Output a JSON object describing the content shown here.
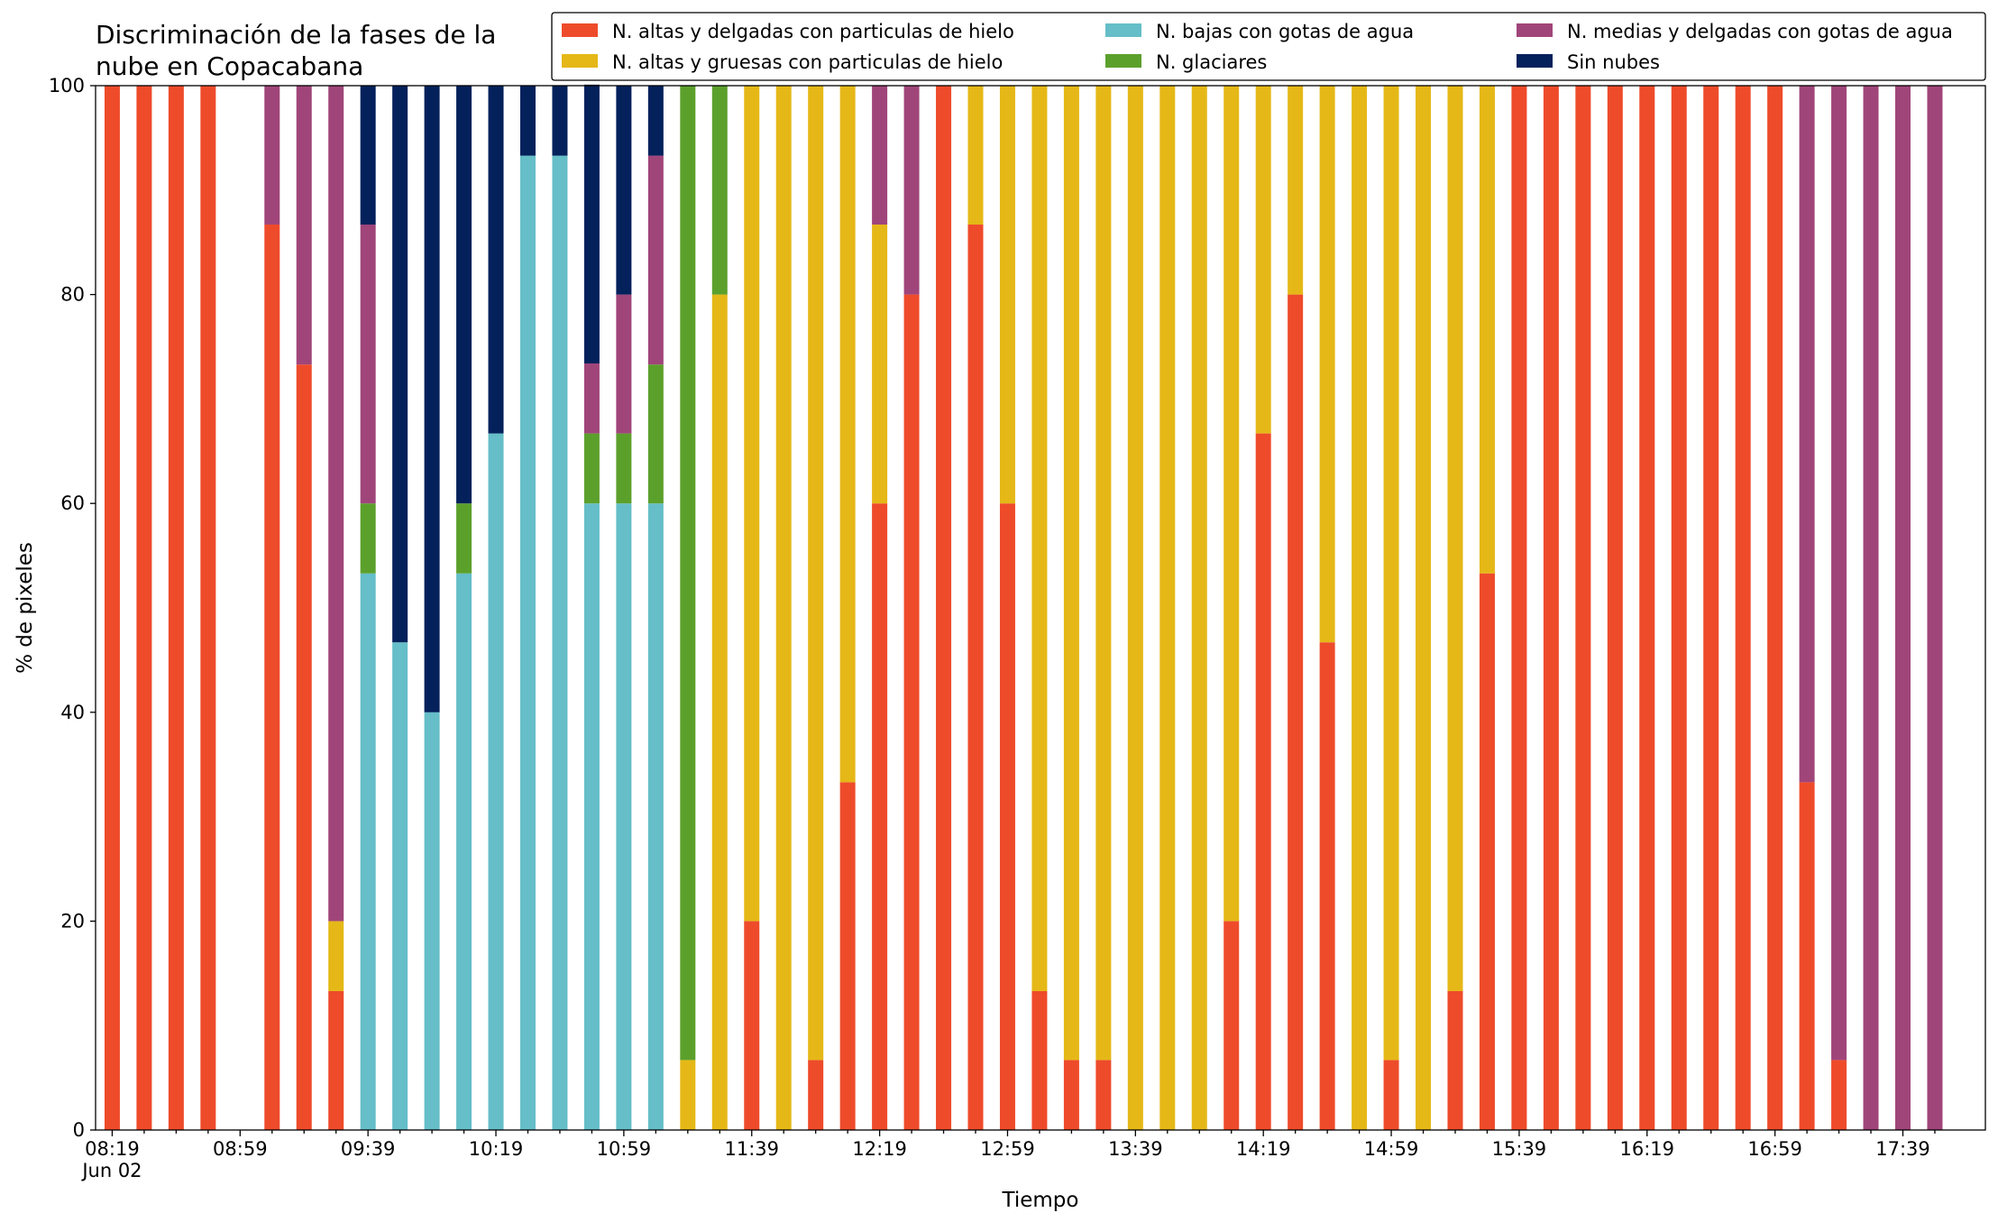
{
  "chart_data": {
    "type": "stacked_bar",
    "title": [
      "Discriminación de la fases de la",
      "nube en Copacabana"
    ],
    "x_label": "Tiempo",
    "y_label": "% de pixeles",
    "x_date_label": "Jun 02",
    "categories": [
      "08:19",
      null,
      null,
      null,
      "08:59",
      null,
      null,
      null,
      "09:39",
      null,
      null,
      null,
      "10:19",
      null,
      null,
      null,
      "10:59",
      null,
      null,
      null,
      "11:39",
      null,
      null,
      null,
      "12:19",
      null,
      null,
      null,
      "12:59",
      null,
      null,
      null,
      "13:39",
      null,
      null,
      null,
      "14:19",
      null,
      null,
      null,
      "14:59",
      null,
      null,
      null,
      "15:39",
      null,
      null,
      null,
      "16:19",
      null,
      null,
      null,
      "16:59",
      null,
      null,
      null,
      "17:39",
      null
    ],
    "series": [
      {
        "name": "N. altas y delgadas con particulas de hielo",
        "color": "#ee4b2b",
        "values": [
          100,
          100,
          100,
          100,
          0,
          86.7,
          73.3,
          13.3,
          0,
          0,
          0,
          0,
          0,
          0,
          0,
          0,
          0,
          0,
          0,
          0,
          20,
          0,
          6.7,
          33.3,
          60,
          80,
          100,
          86.7,
          60,
          13.3,
          6.7,
          6.7,
          0,
          0,
          0,
          20,
          66.7,
          80,
          46.7,
          0,
          6.7,
          0,
          13.3,
          53.3,
          100,
          100,
          100,
          100,
          100,
          100,
          100,
          100,
          100,
          33.3,
          6.7,
          0,
          0,
          0
        ]
      },
      {
        "name": "N. altas y gruesas con particulas de hielo",
        "color": "#e5b817",
        "values": [
          0,
          0,
          0,
          0,
          0,
          0,
          0,
          6.7,
          0,
          0,
          0,
          0,
          0,
          0,
          0,
          0,
          0,
          0,
          6.7,
          80,
          80,
          100,
          93.3,
          66.7,
          26.7,
          0,
          0,
          13.3,
          40,
          86.7,
          93.3,
          93.3,
          100,
          100,
          100,
          80,
          33.3,
          20,
          53.3,
          100,
          93.3,
          100,
          86.7,
          46.7,
          0,
          0,
          0,
          0,
          0,
          0,
          0,
          0,
          0,
          0,
          0,
          0,
          0,
          0
        ]
      },
      {
        "name": "N. bajas con gotas de agua",
        "color": "#65bec8",
        "values": [
          0,
          0,
          0,
          0,
          0,
          0,
          0,
          0,
          53.3,
          46.7,
          40,
          53.3,
          66.7,
          93.3,
          93.3,
          60,
          60,
          60,
          0,
          0,
          0,
          0,
          0,
          0,
          0,
          0,
          0,
          0,
          0,
          0,
          0,
          0,
          0,
          0,
          0,
          0,
          0,
          0,
          0,
          0,
          0,
          0,
          0,
          0,
          0,
          0,
          0,
          0,
          0,
          0,
          0,
          0,
          0,
          0,
          0,
          0,
          0,
          0
        ]
      },
      {
        "name": "N. glaciares",
        "color": "#5ca02c",
        "values": [
          0,
          0,
          0,
          0,
          0,
          0,
          0,
          0,
          6.7,
          0,
          0,
          6.7,
          0,
          0,
          0,
          6.7,
          6.7,
          13.3,
          93.3,
          20,
          0,
          0,
          0,
          0,
          0,
          0,
          0,
          0,
          0,
          0,
          0,
          0,
          0,
          0,
          0,
          0,
          0,
          0,
          0,
          0,
          0,
          0,
          0,
          0,
          0,
          0,
          0,
          0,
          0,
          0,
          0,
          0,
          0,
          0,
          0,
          0,
          0,
          0
        ]
      },
      {
        "name": "N. medias y delgadas con gotas de agua",
        "color": "#a0457a",
        "values": [
          0,
          0,
          0,
          0,
          0,
          13.3,
          26.7,
          80,
          26.7,
          0,
          0,
          0,
          0,
          0,
          0,
          6.7,
          13.3,
          20,
          0,
          0,
          0,
          0,
          0,
          0,
          13.3,
          20,
          0,
          0,
          0,
          0,
          0,
          0,
          0,
          0,
          0,
          0,
          0,
          0,
          0,
          0,
          0,
          0,
          0,
          0,
          0,
          0,
          0,
          0,
          0,
          0,
          0,
          0,
          0,
          66.7,
          93.3,
          100,
          100,
          100
        ]
      },
      {
        "name": "Sin nubes",
        "color": "#04215c",
        "values": [
          0,
          0,
          0,
          0,
          0,
          0,
          0,
          0,
          13.3,
          53.3,
          60,
          40,
          33.3,
          6.7,
          6.7,
          26.7,
          20,
          6.7,
          0,
          0,
          0,
          0,
          0,
          0,
          0,
          0,
          0,
          0,
          0,
          0,
          0,
          0,
          0,
          0,
          0,
          0,
          0,
          0,
          0,
          0,
          0,
          0,
          0,
          0,
          0,
          0,
          0,
          0,
          0,
          0,
          0,
          0,
          0,
          0,
          0,
          0,
          0,
          0
        ]
      }
    ],
    "ylim": [
      0,
      100
    ],
    "yticks": [
      0,
      20,
      40,
      60,
      80,
      100
    ],
    "grid": false,
    "legend": "top"
  }
}
